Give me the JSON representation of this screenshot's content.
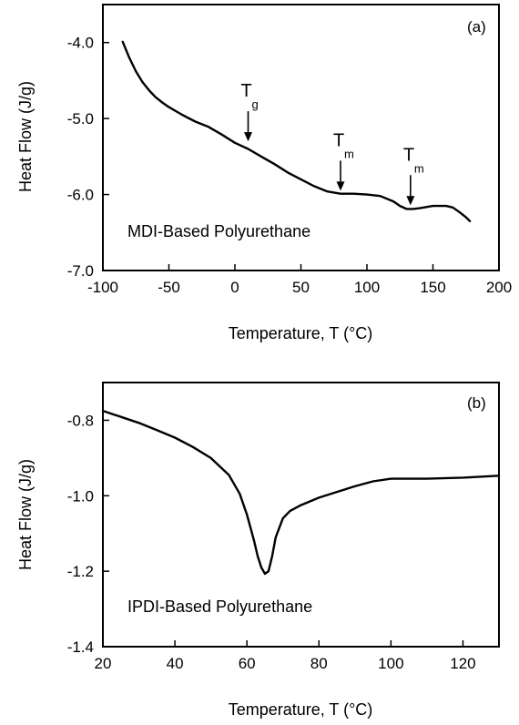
{
  "chart_data": [
    {
      "type": "line",
      "panel_label": "(a)",
      "xlabel": "Temperature, T (°C)",
      "ylabel": "Heat Flow (J/g)",
      "xlim": [
        -100,
        200
      ],
      "ylim": [
        -7.0,
        -3.5
      ],
      "x_ticks": [
        -100,
        -50,
        0,
        50,
        100,
        150,
        200
      ],
      "x_tick_labels": [
        "-100",
        "-50",
        "0",
        "50",
        "100",
        "150",
        "200"
      ],
      "y_ticks": [
        -7.0,
        -6.0,
        -5.0,
        -4.0
      ],
      "y_tick_labels": [
        "-7.0",
        "-6.0",
        "-5.0",
        "-4.0"
      ],
      "grid": false,
      "series": [
        {
          "name": "MDI-Based Polyurethane",
          "x": [
            -85,
            -80,
            -75,
            -70,
            -65,
            -60,
            -55,
            -50,
            -40,
            -30,
            -20,
            -10,
            0,
            10,
            20,
            30,
            40,
            50,
            60,
            70,
            80,
            90,
            100,
            110,
            120,
            125,
            130,
            135,
            140,
            150,
            160,
            165,
            170,
            175,
            178
          ],
          "y": [
            -3.99,
            -4.2,
            -4.38,
            -4.52,
            -4.63,
            -4.72,
            -4.79,
            -4.85,
            -4.95,
            -5.04,
            -5.11,
            -5.21,
            -5.32,
            -5.4,
            -5.5,
            -5.6,
            -5.71,
            -5.8,
            -5.89,
            -5.96,
            -5.99,
            -5.99,
            -6.0,
            -6.02,
            -6.09,
            -6.15,
            -6.19,
            -6.19,
            -6.18,
            -6.15,
            -6.15,
            -6.17,
            -6.23,
            -6.3,
            -6.35
          ]
        }
      ],
      "annotations": [
        {
          "symbol": "T",
          "subscript": "g",
          "x": 10,
          "y": -5.3
        },
        {
          "symbol": "T",
          "subscript": "m",
          "x": 80,
          "y": -5.95
        },
        {
          "symbol": "T",
          "subscript": "m",
          "x": 133,
          "y": -6.14
        }
      ]
    },
    {
      "type": "line",
      "panel_label": "(b)",
      "xlabel": "Temperature, T (°C)",
      "ylabel": "Heat Flow (J/g)",
      "xlim": [
        20,
        130
      ],
      "ylim": [
        -1.4,
        -0.7
      ],
      "x_ticks": [
        20,
        40,
        60,
        80,
        100,
        120
      ],
      "x_tick_labels": [
        "20",
        "40",
        "60",
        "80",
        "100",
        "120"
      ],
      "y_ticks": [
        -1.4,
        -1.2,
        -1.0,
        -0.8
      ],
      "y_tick_labels": [
        "-1.4",
        "-1.2",
        "-1.0",
        "-0.8"
      ],
      "grid": false,
      "series": [
        {
          "name": "IPDI-Based Polyurethane",
          "x": [
            20,
            25,
            30,
            35,
            40,
            45,
            50,
            55,
            58,
            60,
            62,
            63,
            64,
            65,
            66,
            67,
            68,
            70,
            72,
            75,
            80,
            85,
            90,
            95,
            100,
            110,
            120,
            130
          ],
          "y": [
            -0.775,
            -0.791,
            -0.807,
            -0.826,
            -0.846,
            -0.871,
            -0.9,
            -0.945,
            -0.995,
            -1.05,
            -1.12,
            -1.16,
            -1.19,
            -1.207,
            -1.2,
            -1.16,
            -1.11,
            -1.06,
            -1.04,
            -1.025,
            -1.005,
            -0.99,
            -0.975,
            -0.962,
            -0.955,
            -0.955,
            -0.952,
            -0.947
          ]
        }
      ]
    }
  ]
}
